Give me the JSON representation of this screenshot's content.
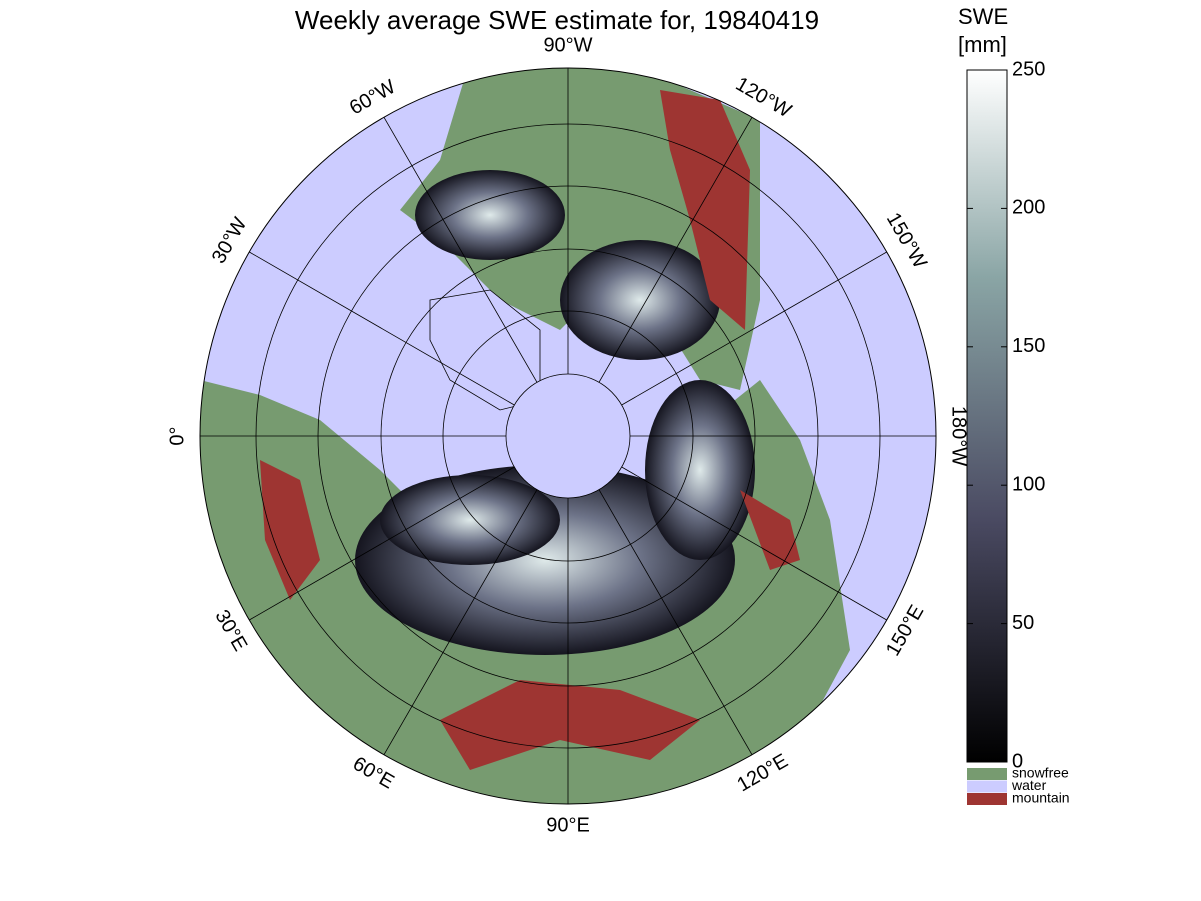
{
  "title": "Weekly average SWE estimate for, 19840419",
  "longitude_labels": [
    "90°W",
    "120°W",
    "150°W",
    "180°W",
    "150°E",
    "120°E",
    "90°E",
    "60°E",
    "30°E",
    "0°",
    "30°W",
    "60°W"
  ],
  "colorbar": {
    "label": [
      "SWE",
      "[mm]"
    ],
    "lim": [
      0,
      250
    ],
    "ticks": [
      0,
      50,
      100,
      150,
      200,
      250
    ]
  },
  "legend": [
    {
      "name": "snowfree",
      "color": "#779b70"
    },
    {
      "name": "water",
      "color": "#ccccff"
    },
    {
      "name": "mountain",
      "color": "#9e3532"
    }
  ]
}
